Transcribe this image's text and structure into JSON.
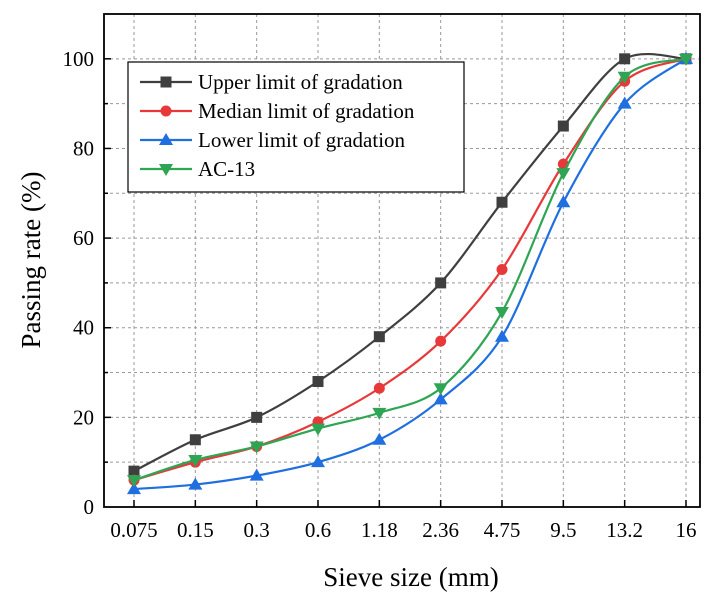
{
  "chart_data": {
    "type": "line",
    "xlabel": "Sieve size (mm)",
    "ylabel": "Passing rate (%)",
    "categories": [
      "0.075",
      "0.15",
      "0.3",
      "0.6",
      "1.18",
      "2.36",
      "4.75",
      "9.5",
      "13.2",
      "16"
    ],
    "ylim": [
      0,
      110
    ],
    "yticks": [
      0,
      20,
      40,
      60,
      80,
      100
    ],
    "grid": true,
    "legend_position": "top-left",
    "series": [
      {
        "name": "Upper limit of gradation",
        "color": "#3f3f3f",
        "marker": "square",
        "values": [
          8,
          15,
          20,
          28,
          38,
          50,
          68,
          85,
          100,
          100
        ]
      },
      {
        "name": "Median limit of gradation",
        "color": "#e8393a",
        "marker": "circle",
        "values": [
          6,
          10,
          13.5,
          19,
          26.5,
          37,
          53,
          76.5,
          95,
          100
        ]
      },
      {
        "name": "Lower limit of gradation",
        "color": "#1f6fe0",
        "marker": "triangle-up",
        "values": [
          4,
          5,
          7,
          10,
          15,
          24,
          38,
          68,
          90,
          100
        ]
      },
      {
        "name": "AC-13",
        "color": "#2ea552",
        "marker": "triangle-down",
        "values": [
          6,
          10.5,
          13.5,
          17.5,
          21,
          26.5,
          43.5,
          74.5,
          96,
          100
        ]
      }
    ]
  }
}
